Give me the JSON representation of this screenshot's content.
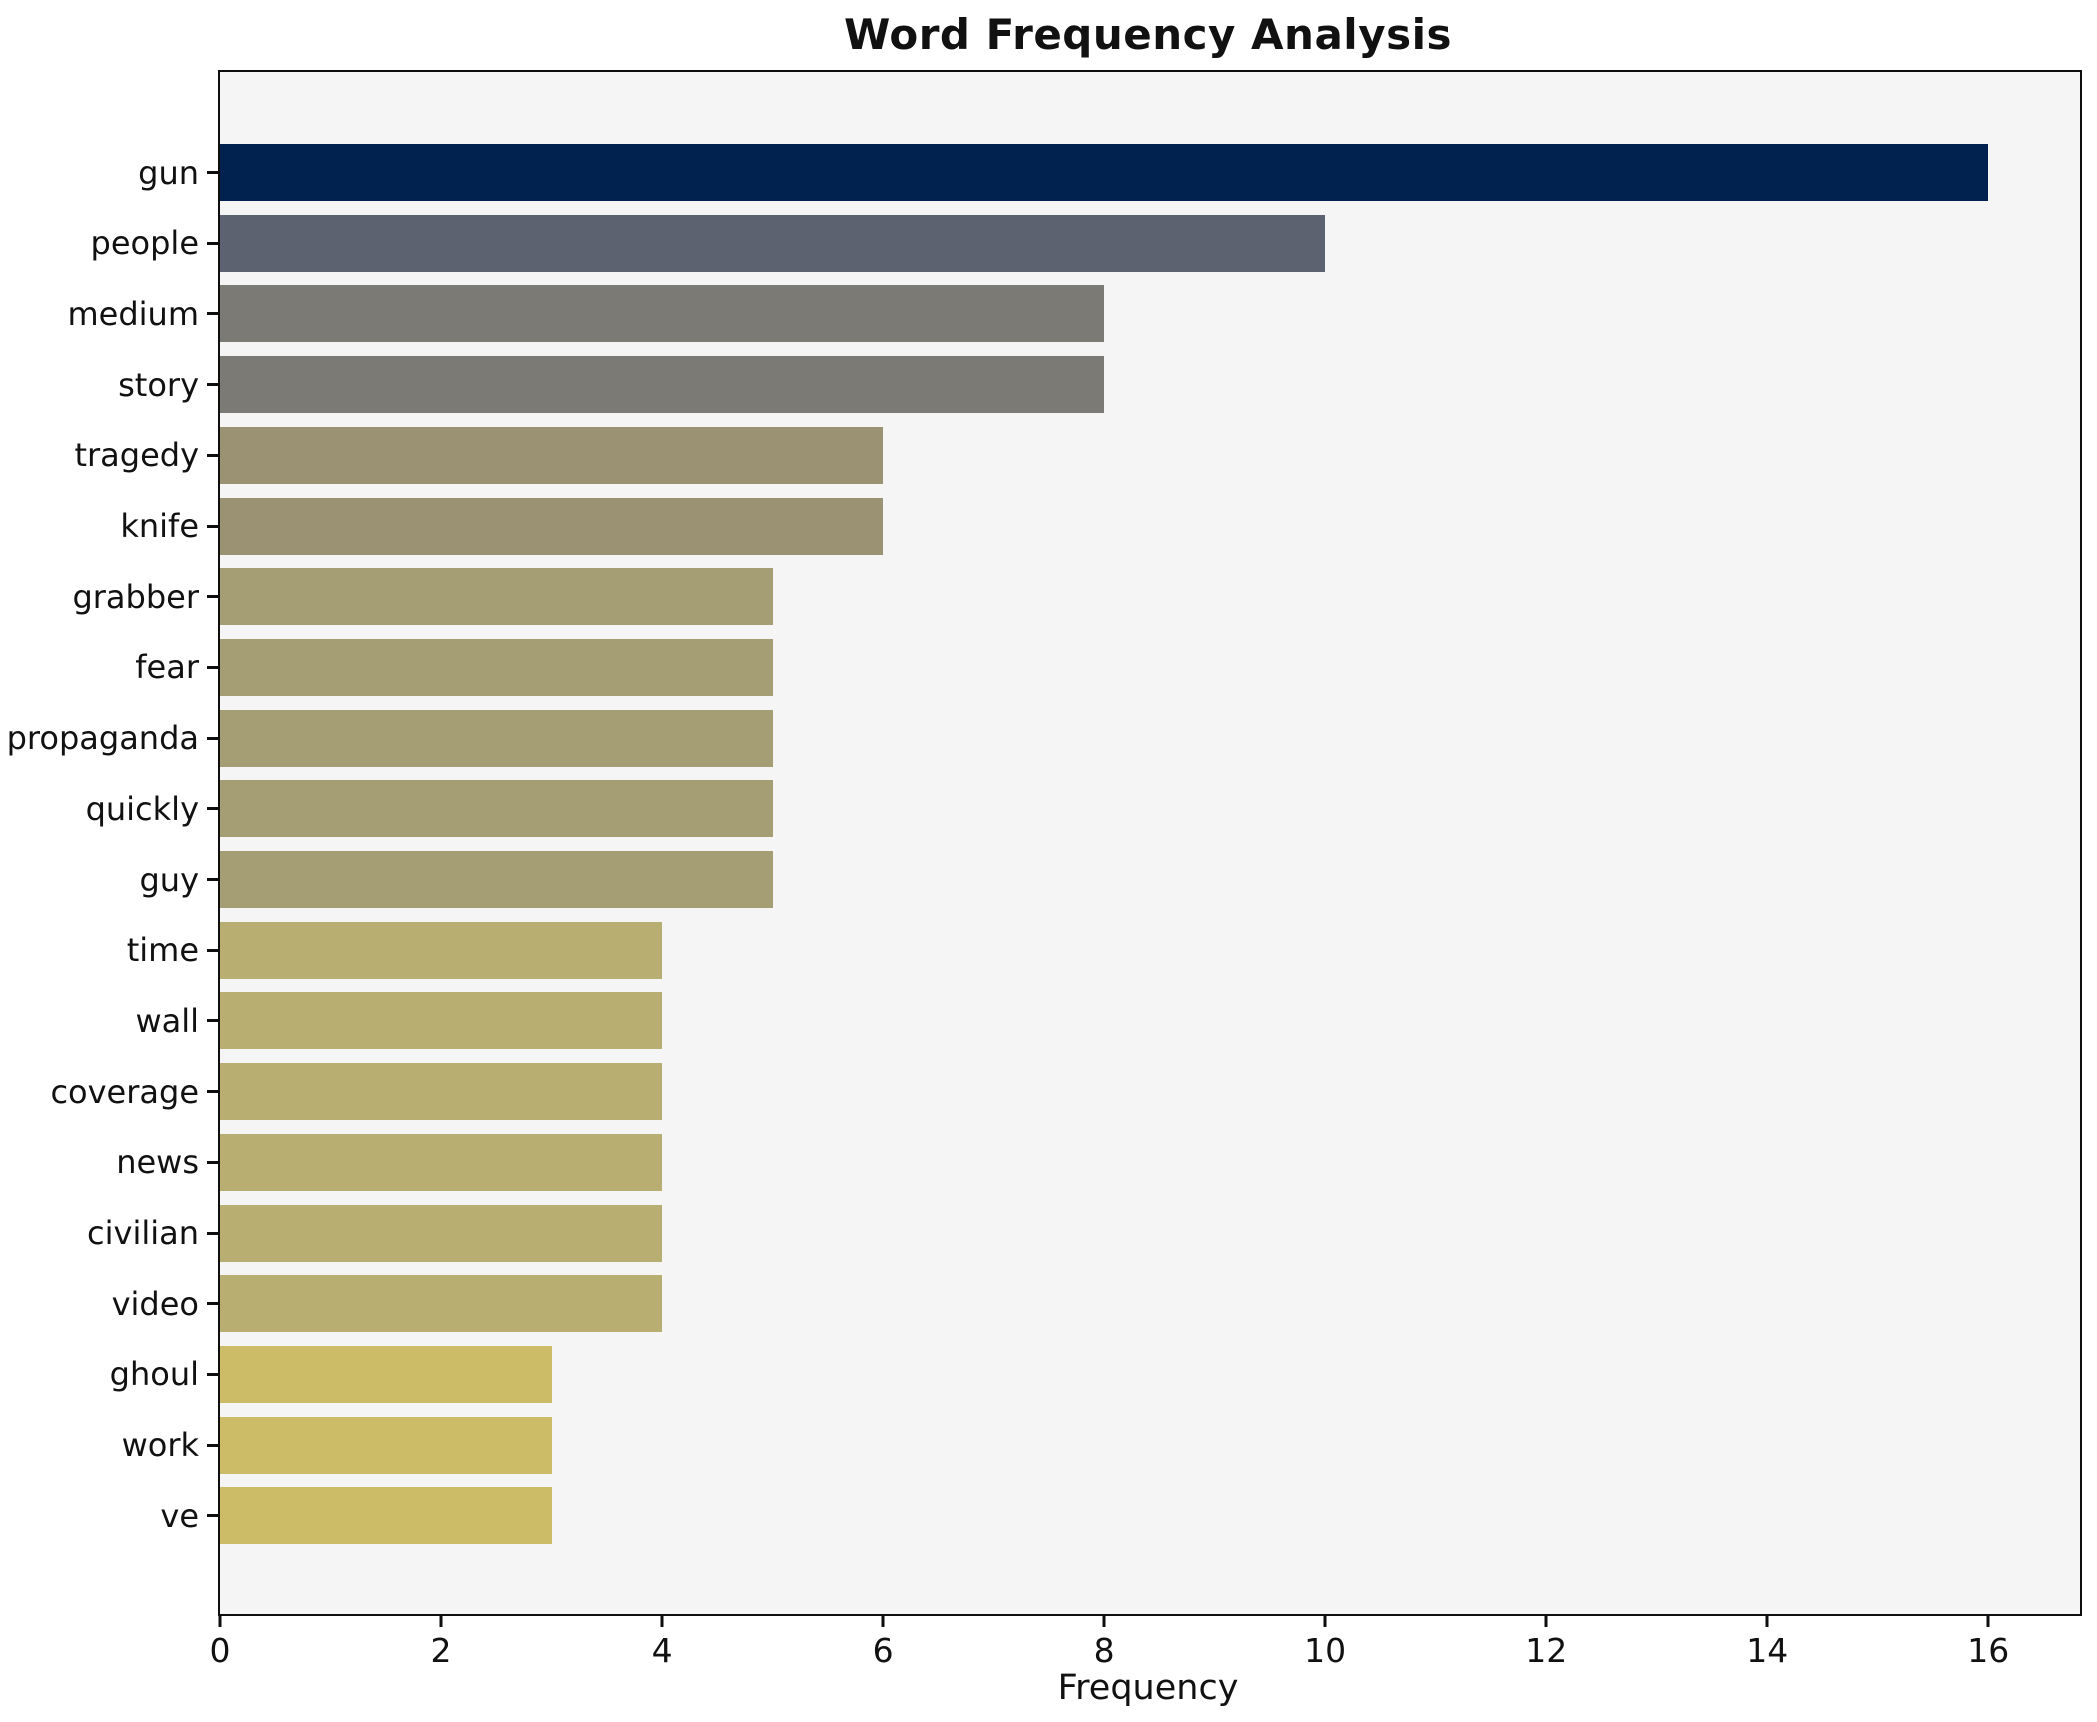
{
  "title": "Word Frequency Analysis",
  "xlabel": "Frequency",
  "chart_data": {
    "type": "bar",
    "orientation": "horizontal",
    "title": "Word Frequency Analysis",
    "xlabel": "Frequency",
    "ylabel": "",
    "grid": false,
    "legend": false,
    "plot_background": "#f6f5f5",
    "spine_color": "#0e0e0e",
    "xlim": [
      0,
      16.83
    ],
    "xticks": [
      0,
      2,
      4,
      6,
      8,
      10,
      12,
      14,
      16
    ],
    "categories": [
      "gun",
      "people",
      "medium",
      "story",
      "tragedy",
      "knife",
      "grabber",
      "fear",
      "propaganda",
      "quickly",
      "guy",
      "time",
      "wall",
      "coverage",
      "news",
      "civilian",
      "video",
      "ghoul",
      "work",
      "ve"
    ],
    "values": [
      16,
      10,
      8,
      8,
      6,
      6,
      5,
      5,
      5,
      5,
      5,
      4,
      4,
      4,
      4,
      4,
      4,
      3,
      3,
      3
    ],
    "bar_colors": [
      "#01224e",
      "#5d6271",
      "#7b7a74",
      "#7b7a74",
      "#9a9272",
      "#9a9272",
      "#a59d74",
      "#a59d74",
      "#a59d74",
      "#a59d74",
      "#a59d74",
      "#b9ae72",
      "#b9ae72",
      "#b9ae72",
      "#b9ae72",
      "#b9ae72",
      "#b9ae72",
      "#cdbc67",
      "#cdbc67",
      "#cdbc67"
    ]
  }
}
